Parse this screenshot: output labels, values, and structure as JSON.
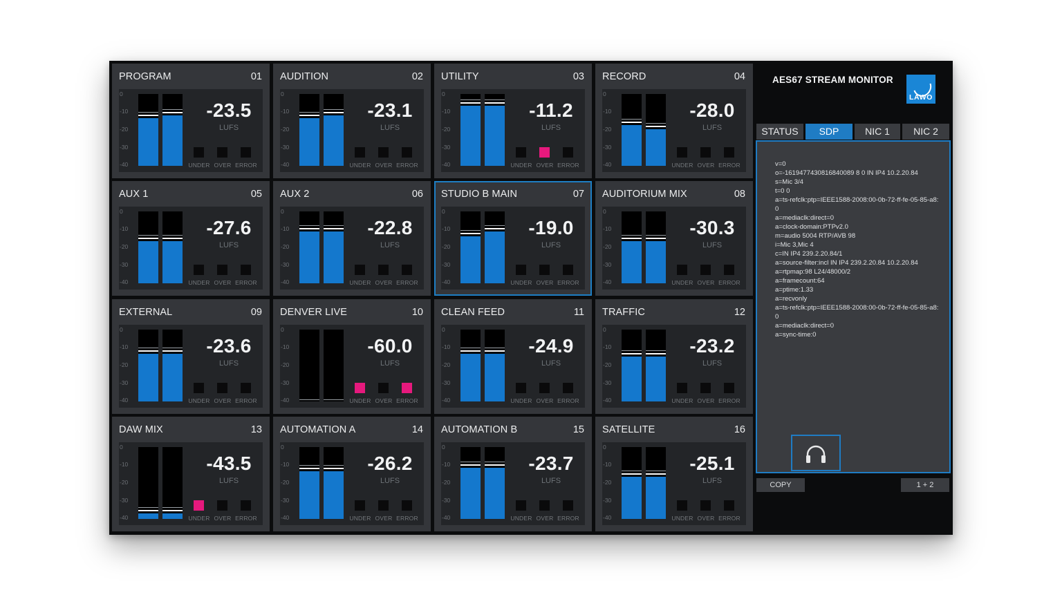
{
  "app": {
    "title": "AES67 STREAM MONITOR",
    "logo_text": "LAWO",
    "accent_color": "#1f7cc4",
    "meter_color": "#1478cd",
    "alarm_color": "#e6197d"
  },
  "scale_labels": [
    "0",
    "-10",
    "-20",
    "-30",
    "-40"
  ],
  "indicator_labels": {
    "under": "UNDER",
    "over": "OVER",
    "error": "ERROR"
  },
  "unit": "LUFS",
  "selected_channel": "07",
  "channels": [
    {
      "name": "PROGRAM",
      "num": "01",
      "lufs": "-23.5",
      "left": -13.4,
      "right": -11.8,
      "under": false,
      "over": false,
      "error": false
    },
    {
      "name": "AUDITION",
      "num": "02",
      "lufs": "-23.1",
      "left": -13.5,
      "right": -11.8,
      "under": false,
      "over": false,
      "error": false
    },
    {
      "name": "UTILITY",
      "num": "03",
      "lufs": "-11.2",
      "left": -6.5,
      "right": -6.5,
      "under": false,
      "over": true,
      "error": false
    },
    {
      "name": "RECORD",
      "num": "04",
      "lufs": "-28.0",
      "left": -17.5,
      "right": -19.5,
      "under": false,
      "over": false,
      "error": false
    },
    {
      "name": "AUX 1",
      "num": "05",
      "lufs": "-27.6",
      "left": -16.5,
      "right": -16.5,
      "under": false,
      "over": false,
      "error": false
    },
    {
      "name": "AUX 2",
      "num": "06",
      "lufs": "-22.8",
      "left": -11.0,
      "right": -11.0,
      "under": false,
      "over": false,
      "error": false
    },
    {
      "name": "STUDIO B MAIN",
      "num": "07",
      "lufs": "-19.0",
      "left": -14.0,
      "right": -11.0,
      "under": false,
      "over": false,
      "error": false
    },
    {
      "name": "AUDITORIUM MIX",
      "num": "08",
      "lufs": "-30.3",
      "left": -16.5,
      "right": -16.5,
      "under": false,
      "over": false,
      "error": false
    },
    {
      "name": "EXTERNAL",
      "num": "09",
      "lufs": "-23.6",
      "left": -13.5,
      "right": -13.5,
      "under": false,
      "over": false,
      "error": false
    },
    {
      "name": "DENVER LIVE",
      "num": "10",
      "lufs": "-60.0",
      "left": -40.0,
      "right": -40.0,
      "under": true,
      "over": false,
      "error": true
    },
    {
      "name": "CLEAN FEED",
      "num": "11",
      "lufs": "-24.9",
      "left": -13.5,
      "right": -13.5,
      "under": false,
      "over": false,
      "error": false
    },
    {
      "name": "TRAFFIC",
      "num": "12",
      "lufs": "-23.2",
      "left": -15.0,
      "right": -15.0,
      "under": false,
      "over": false,
      "error": false
    },
    {
      "name": "DAW MIX",
      "num": "13",
      "lufs": "-43.5",
      "left": -37.0,
      "right": -37.0,
      "under": true,
      "over": false,
      "error": false
    },
    {
      "name": "AUTOMATION A",
      "num": "14",
      "lufs": "-26.2",
      "left": -13.5,
      "right": -13.5,
      "under": false,
      "over": false,
      "error": false
    },
    {
      "name": "AUTOMATION B",
      "num": "15",
      "lufs": "-23.7",
      "left": -11.5,
      "right": -11.5,
      "under": false,
      "over": false,
      "error": false
    },
    {
      "name": "SATELLITE",
      "num": "16",
      "lufs": "-25.1",
      "left": -16.5,
      "right": -16.5,
      "under": false,
      "over": false,
      "error": false
    }
  ],
  "tabs": [
    {
      "label": "STATUS",
      "active": false
    },
    {
      "label": "SDP",
      "active": true
    },
    {
      "label": "NIC 1",
      "active": false
    },
    {
      "label": "NIC 2",
      "active": false
    }
  ],
  "sdp_text": "v=0\no=-1619477430816840089 8 0 IN IP4 10.2.20.84\ns=Mic 3/4\nt=0 0\na=ts-refclk:ptp=IEEE1588-2008:00-0b-72-ff-fe-05-85-a8:0\na=mediaclk:direct=0\na=clock-domain:PTPv2.0\nm=audio 5004 RTP/AVB 98\ni=Mic 3,Mic 4\nc=IN IP4 239.2.20.84/1\na=source-filter:incl IN IP4 239.2.20.84 10.2.20.84\na=rtpmap:98 L24/48000/2\na=framecount:64\na=ptime:1.33\na=recvonly\na=ts-refclk:ptp=IEEE1588-2008:00-0b-72-ff-fe-05-85-a8:0\na=mediaclk:direct=0\na=sync-time:0",
  "buttons": {
    "copy": "COPY",
    "pair": "1 + 2",
    "headphones_icon": "headphones-icon"
  }
}
